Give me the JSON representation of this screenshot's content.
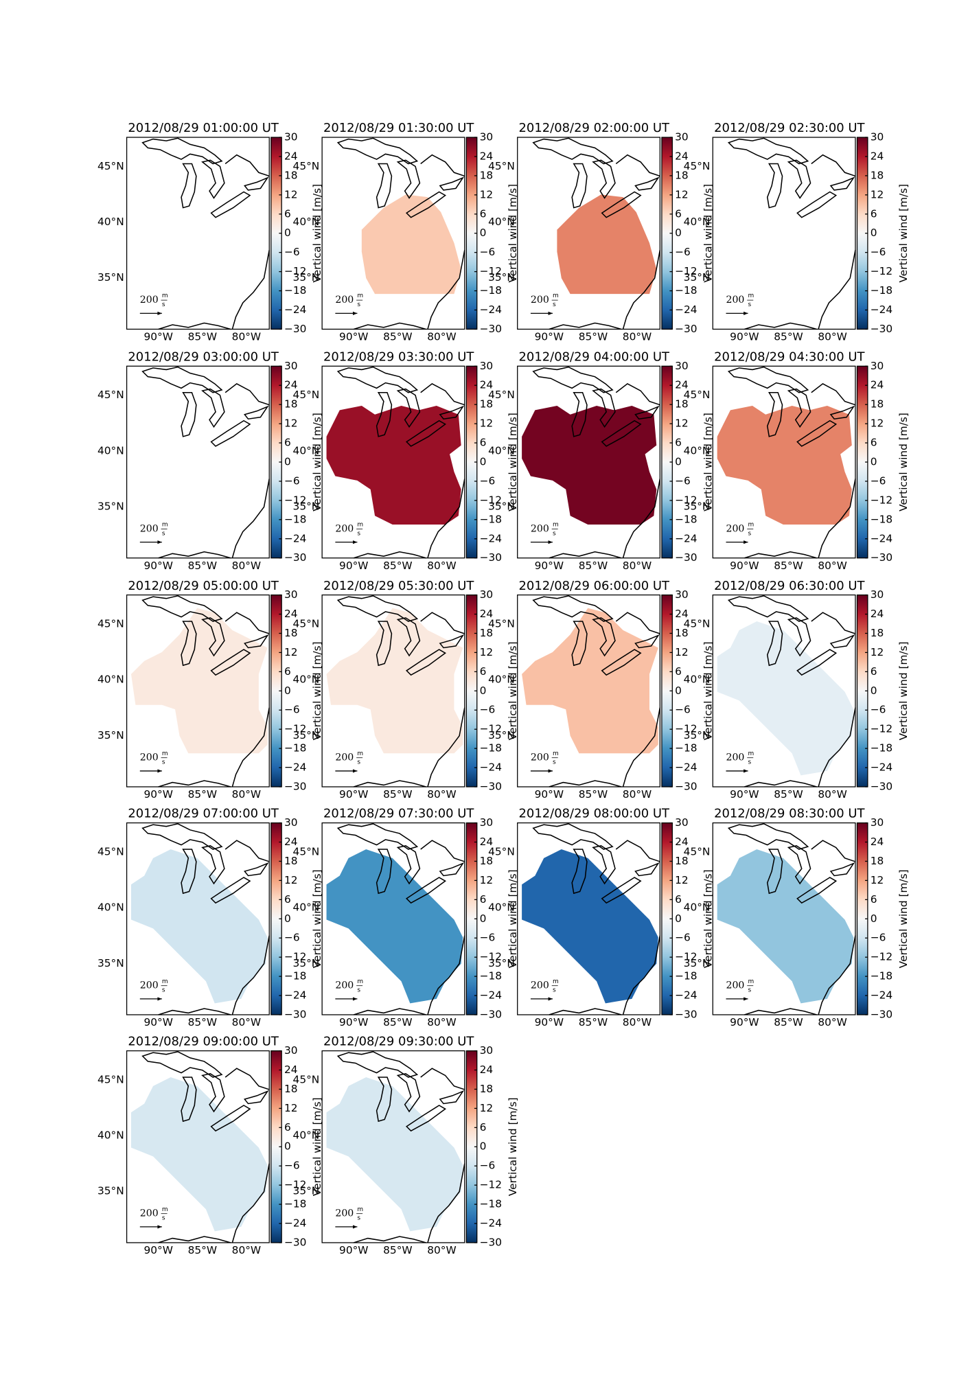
{
  "panels": [
    {
      "title": "2012/08/29 01:00:00 UT",
      "value": null
    },
    {
      "title": "2012/08/29 01:30:00 UT",
      "value": 8
    },
    {
      "title": "2012/08/29 02:00:00 UT",
      "value": 15
    },
    {
      "title": "2012/08/29 02:30:00 UT",
      "value": null
    },
    {
      "title": "2012/08/29 03:00:00 UT",
      "value": null
    },
    {
      "title": "2012/08/29 03:30:00 UT",
      "value": 26
    },
    {
      "title": "2012/08/29 04:00:00 UT",
      "value": 29
    },
    {
      "title": "2012/08/29 04:30:00 UT",
      "value": 15
    },
    {
      "title": "2012/08/29 05:00:00 UT",
      "value": 3
    },
    {
      "title": "2012/08/29 05:30:00 UT",
      "value": 3
    },
    {
      "title": "2012/08/29 06:00:00 UT",
      "value": 9
    },
    {
      "title": "2012/08/29 06:30:00 UT",
      "value": -3
    },
    {
      "title": "2012/08/29 07:00:00 UT",
      "value": -6
    },
    {
      "title": "2012/08/29 07:30:00 UT",
      "value": -18
    },
    {
      "title": "2012/08/29 08:00:00 UT",
      "value": -24
    },
    {
      "title": "2012/08/29 08:30:00 UT",
      "value": -12
    },
    {
      "title": "2012/08/29 09:00:00 UT",
      "value": -5
    },
    {
      "title": "2012/08/29 09:30:00 UT",
      "value": -5
    }
  ],
  "colorbar": {
    "label": "Vertical wind [m/s]",
    "lim": [
      -30,
      30
    ],
    "ticks": [
      {
        "value": -30,
        "label": "−30"
      },
      {
        "value": -24,
        "label": "−24"
      },
      {
        "value": -18,
        "label": "−18"
      },
      {
        "value": -12,
        "label": "−12"
      },
      {
        "value": -6,
        "label": "−6"
      },
      0,
      6,
      12,
      18,
      24,
      30
    ],
    "colors": [
      "#053061",
      "#2166ac",
      "#4393c3",
      "#92c5de",
      "#d1e5f0",
      "#f7f7f7",
      "#fddbc7",
      "#f4a582",
      "#d6604d",
      "#b2182b",
      "#67001f"
    ]
  },
  "map": {
    "lonlim": [
      -93.6,
      -77.4
    ],
    "latlim": [
      30.4,
      47.6
    ],
    "lat_ticks": [
      {
        "value": 45,
        "label": "45°N"
      },
      {
        "value": 40,
        "label": "40°N"
      },
      {
        "value": 35,
        "label": "35°N"
      }
    ],
    "lon_ticks": [
      {
        "value": -90,
        "label": "90°W"
      },
      {
        "value": -85,
        "label": "85°W"
      },
      {
        "value": -80,
        "label": "80°W"
      }
    ]
  },
  "scale": {
    "value": 200,
    "unit_num": "m",
    "unit_den": "s"
  }
}
